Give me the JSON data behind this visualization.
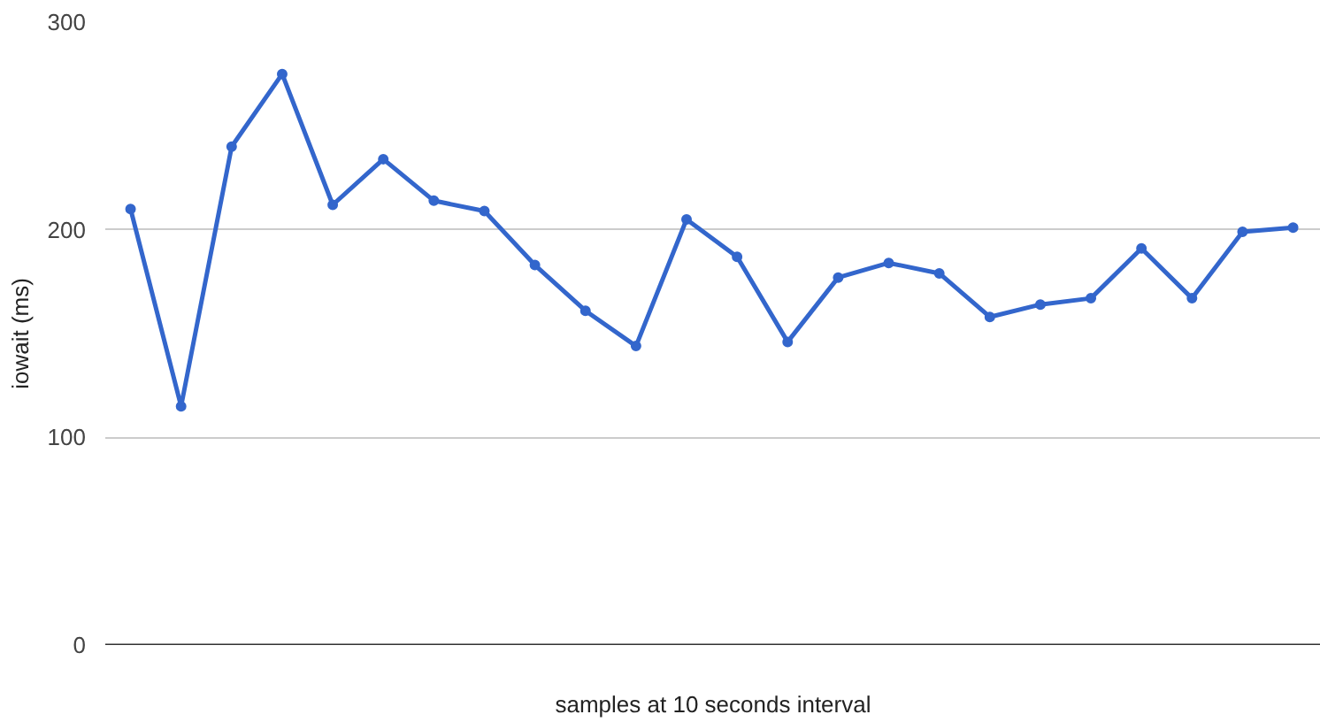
{
  "chart_data": {
    "type": "line",
    "xlabel": "samples at 10 seconds interval",
    "ylabel": "iowait (ms)",
    "categories": [
      null,
      null,
      null,
      null,
      null,
      null,
      null,
      null,
      null,
      null,
      null,
      null,
      null,
      null,
      null,
      null,
      null,
      null,
      null,
      null,
      null,
      null,
      null,
      null
    ],
    "series": [
      {
        "color": "#3366cc",
        "values": [
          210,
          115,
          240,
          275,
          212,
          234,
          214,
          209,
          183,
          161,
          144,
          205,
          187,
          146,
          177,
          184,
          179,
          158,
          164,
          167,
          191,
          167,
          199,
          201
        ]
      }
    ],
    "ylim": [
      0,
      300
    ],
    "yticks": [
      0,
      100,
      200,
      300
    ],
    "grid": "y",
    "tick_labels": "y",
    "marker": "circle",
    "line_style": "solid"
  }
}
